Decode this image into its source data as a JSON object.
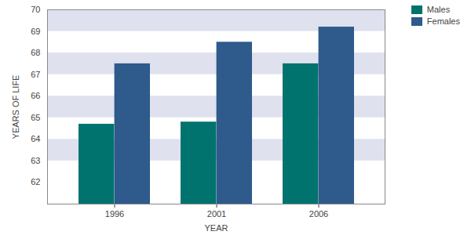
{
  "chart_data": {
    "type": "bar",
    "x_label": "YEAR",
    "y_label": "YEARS OF LIFE",
    "categories": [
      "1996",
      "2001",
      "2006"
    ],
    "series": [
      {
        "name": "Males",
        "color": "#00736e",
        "values": [
          64.7,
          64.8,
          67.5
        ]
      },
      {
        "name": "Females",
        "color": "#2e5a8c",
        "values": [
          67.5,
          68.5,
          69.2
        ]
      }
    ],
    "ylim": [
      61,
      70
    ],
    "yticks": [
      62,
      63,
      64,
      65,
      66,
      67,
      68,
      69,
      70
    ],
    "grid": true,
    "legend": "top-right"
  }
}
